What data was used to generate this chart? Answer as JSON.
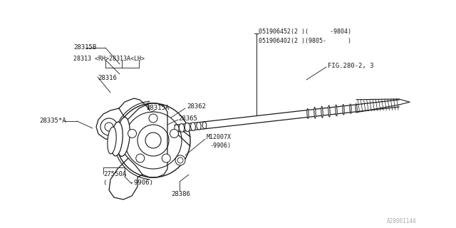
{
  "bg_color": "#ffffff",
  "line_color": "#1a1a1a",
  "text_color": "#1a1a1a",
  "gray_text": "#aaaaaa",
  "fig_id": "A28001144",
  "label_texts": {
    "28315B": "28315B",
    "28313": "28313 <RH>28313A<LH>",
    "28316": "28316",
    "28315A": "28315A",
    "28335A": "28335*A",
    "28362": "28362",
    "28365": "28365",
    "M12007X": "M12007X",
    "9906b": "-9906)",
    "27550A": "27550A",
    "9906c": "(      -9906)",
    "28386": "28386",
    "051906452": "051906452(2 )(      -9804)",
    "051906402": "051906402(2 )(9805-      )",
    "FIG280": "FIG.280-2, 3"
  }
}
